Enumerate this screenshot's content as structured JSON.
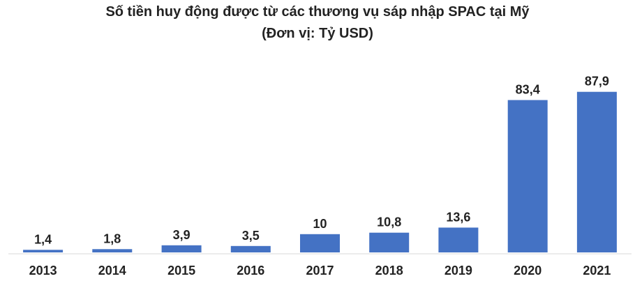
{
  "chart_data": {
    "type": "bar",
    "title": "Số tiền huy động được từ các thương vụ sáp nhập SPAC tại Mỹ",
    "subtitle": "(Đơn vị: Tỷ USD)",
    "categories": [
      "2013",
      "2014",
      "2015",
      "2016",
      "2017",
      "2018",
      "2019",
      "2020",
      "2021"
    ],
    "values": [
      1.4,
      1.8,
      3.9,
      3.5,
      10,
      10.8,
      13.6,
      83.4,
      87.9
    ],
    "value_labels": [
      "1,4",
      "1,8",
      "3,9",
      "3,5",
      "10",
      "10,8",
      "13,6",
      "83,4",
      "87,9"
    ],
    "xlabel": "",
    "ylabel": "",
    "ylim": [
      0,
      100
    ],
    "grid": false,
    "legend": "none",
    "bar_color": "#4472C4"
  }
}
